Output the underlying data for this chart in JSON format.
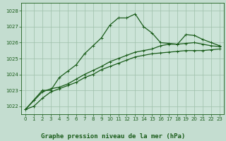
{
  "title": "Graphe pression niveau de la mer (hPa)",
  "background_color": "#c4ddd0",
  "plot_bg_color": "#cce4d8",
  "grid_color": "#9dbfaa",
  "line_color": "#1a5c1a",
  "xlim": [
    -0.5,
    23.5
  ],
  "ylim": [
    1021.5,
    1028.5
  ],
  "yticks": [
    1022,
    1023,
    1024,
    1025,
    1026,
    1027,
    1028
  ],
  "xticks": [
    0,
    1,
    2,
    3,
    4,
    5,
    6,
    7,
    8,
    9,
    10,
    11,
    12,
    13,
    14,
    15,
    16,
    17,
    18,
    19,
    20,
    21,
    22,
    23
  ],
  "line1_x": [
    0,
    1,
    2,
    3,
    4,
    5,
    6,
    7,
    8,
    9,
    10,
    11,
    12,
    13,
    14,
    15,
    16,
    17,
    18,
    19,
    20,
    21,
    22,
    23
  ],
  "line1_y": [
    1021.8,
    1022.4,
    1023.0,
    1023.0,
    1023.8,
    1024.2,
    1024.6,
    1025.3,
    1025.8,
    1026.3,
    1027.1,
    1027.55,
    1027.55,
    1027.8,
    1027.0,
    1026.6,
    1026.0,
    1025.95,
    1025.9,
    1026.5,
    1026.45,
    1026.2,
    1026.0,
    1025.8
  ],
  "line2_x": [
    0,
    2,
    3,
    4,
    5,
    6,
    7,
    8,
    9,
    10,
    11,
    12,
    13,
    14,
    15,
    16,
    17,
    18,
    19,
    20,
    21,
    22,
    23
  ],
  "line2_y": [
    1021.8,
    1022.9,
    1023.1,
    1023.2,
    1023.4,
    1023.7,
    1024.0,
    1024.25,
    1024.5,
    1024.8,
    1025.0,
    1025.2,
    1025.4,
    1025.5,
    1025.6,
    1025.8,
    1025.9,
    1025.9,
    1025.95,
    1026.0,
    1025.9,
    1025.8,
    1025.75
  ],
  "line3_x": [
    0,
    1,
    2,
    3,
    4,
    5,
    6,
    7,
    8,
    9,
    10,
    11,
    12,
    13,
    14,
    15,
    16,
    17,
    18,
    19,
    20,
    21,
    22,
    23
  ],
  "line3_y": [
    1021.8,
    1022.0,
    1022.5,
    1022.9,
    1023.1,
    1023.3,
    1023.5,
    1023.8,
    1024.0,
    1024.3,
    1024.5,
    1024.7,
    1024.9,
    1025.1,
    1025.2,
    1025.3,
    1025.35,
    1025.4,
    1025.45,
    1025.5,
    1025.5,
    1025.5,
    1025.55,
    1025.6
  ],
  "marker": "+",
  "markersize": 3,
  "linewidth": 0.9,
  "title_fontsize": 6.5,
  "tick_fontsize": 5.0
}
